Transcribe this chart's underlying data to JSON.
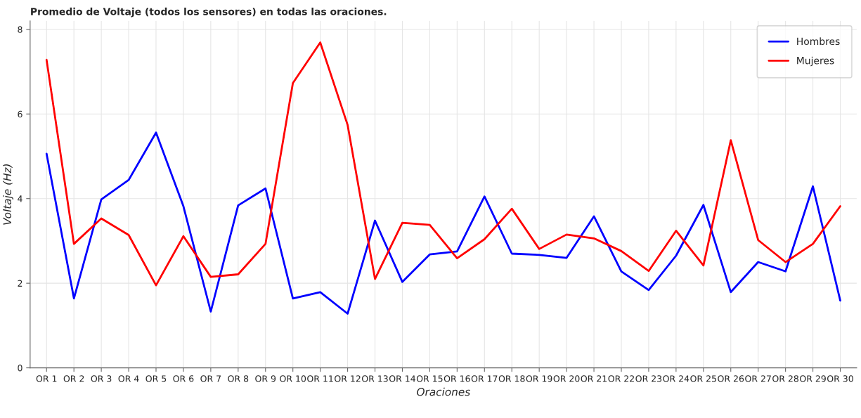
{
  "chart_data": {
    "type": "line",
    "title": "Promedio de Voltaje (todos los sensores) en todas las oraciones.",
    "xlabel": "Oraciones",
    "ylabel": "Voltaje (Hz)",
    "categories": [
      "OR 1",
      "OR 2",
      "OR 3",
      "OR 4",
      "OR 5",
      "OR 6",
      "OR 7",
      "OR 8",
      "OR 9",
      "OR 10",
      "OR 11",
      "OR 12",
      "OR 13",
      "OR 14",
      "OR 15",
      "OR 16",
      "OR 17",
      "OR 18",
      "OR 19",
      "OR 20",
      "OR 21",
      "OR 22",
      "OR 23",
      "OR 24",
      "OR 25",
      "OR 26",
      "OR 27",
      "OR 28",
      "OR 29",
      "OR 30"
    ],
    "series": [
      {
        "name": "Hombres",
        "color": "#0000ff",
        "values": [
          5.06,
          1.64,
          3.98,
          4.44,
          5.56,
          3.82,
          1.33,
          3.84,
          4.24,
          1.64,
          1.79,
          1.28,
          3.48,
          2.03,
          2.68,
          2.75,
          4.05,
          2.7,
          2.67,
          2.6,
          3.58,
          2.28,
          1.84,
          2.65,
          3.85,
          1.79,
          2.5,
          2.28,
          4.29,
          1.59
        ]
      },
      {
        "name": "Mujeres",
        "color": "#ff0000",
        "values": [
          7.28,
          2.93,
          3.53,
          3.14,
          1.95,
          3.11,
          2.15,
          2.21,
          2.93,
          6.73,
          7.69,
          5.74,
          2.1,
          3.43,
          3.38,
          2.59,
          3.04,
          3.76,
          2.81,
          3.15,
          3.06,
          2.76,
          2.29,
          3.24,
          2.42,
          5.38,
          3.02,
          2.5,
          2.93,
          3.82
        ]
      }
    ],
    "ylim": [
      0,
      8.2
    ],
    "yticks": [
      0,
      2,
      4,
      6,
      8
    ],
    "grid": true,
    "legend": "top right",
    "marker": "none",
    "line_style": "solid"
  }
}
